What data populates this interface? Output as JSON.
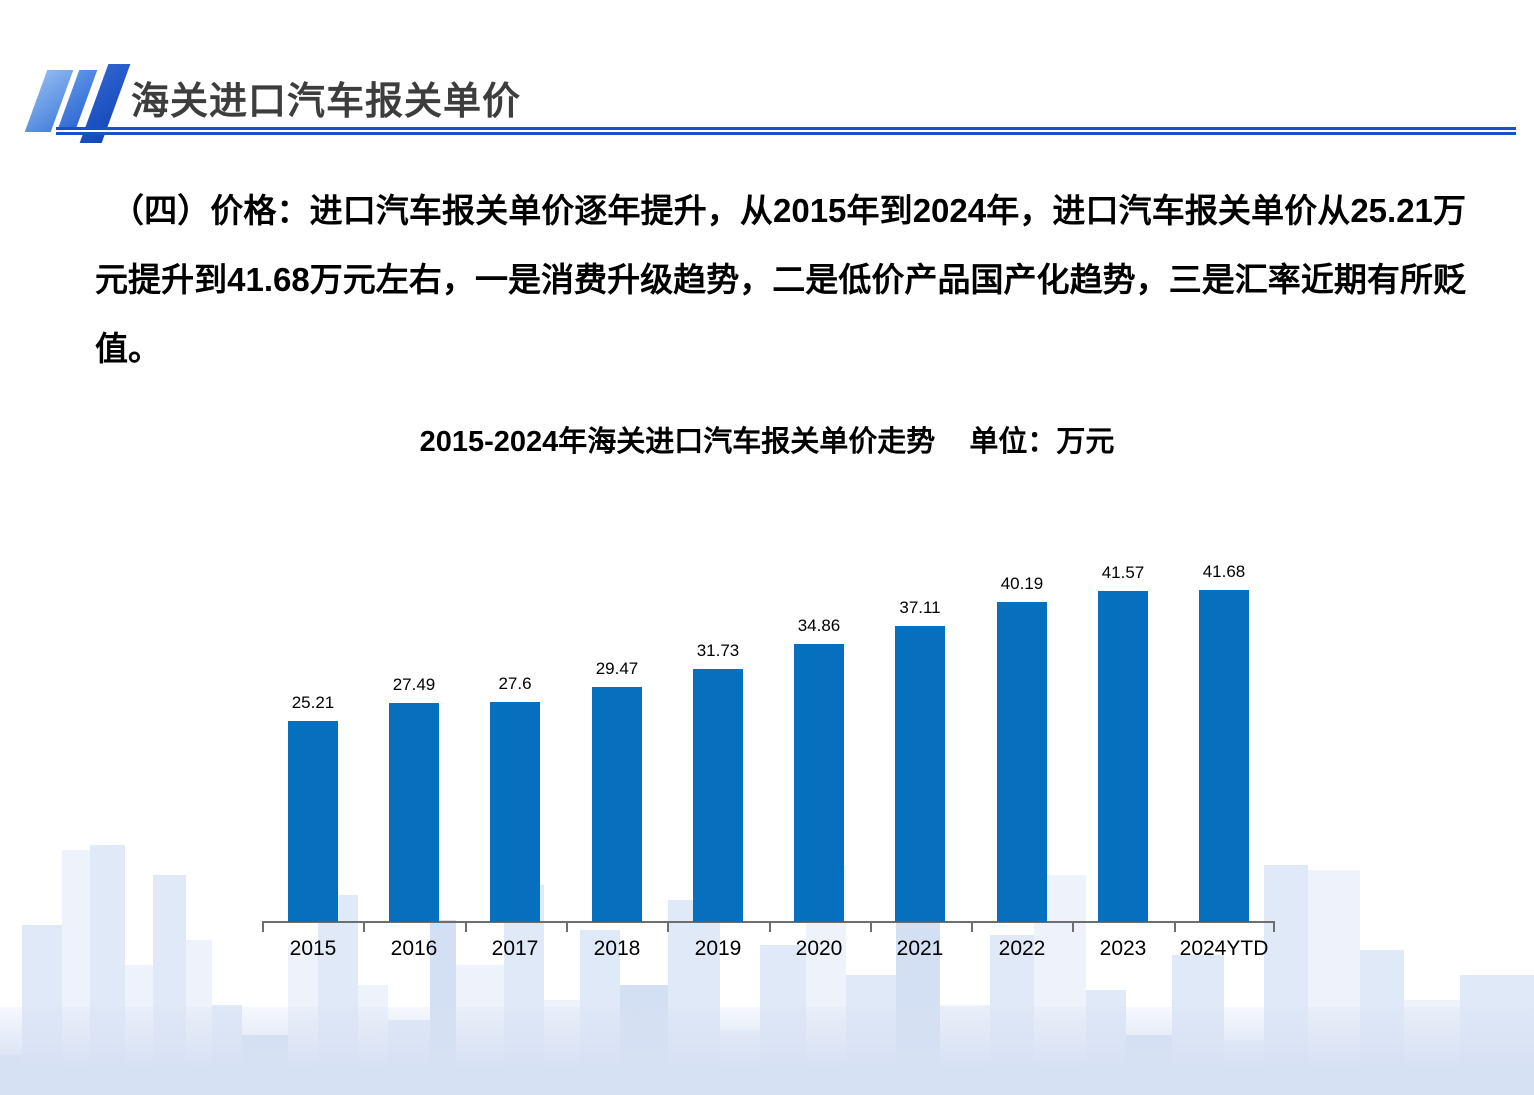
{
  "header": {
    "title": "海关进口汽车报关单价"
  },
  "intro": {
    "text": "（四）价格：进口汽车报关单价逐年提升，从2015年到2024年，进口汽车报关单价从25.21万元提升到41.68万元左右，一是消费升级趋势，二是低价产品国产化趋势，三是汇率近期有所贬值。"
  },
  "chart_data": {
    "type": "bar",
    "title": "2015-2024年海关进口汽车报关单价走势",
    "unit_label": "单位：万元",
    "categories": [
      "2015",
      "2016",
      "2017",
      "2018",
      "2019",
      "2020",
      "2021",
      "2022",
      "2023",
      "2024YTD"
    ],
    "values": [
      25.21,
      27.49,
      27.6,
      29.47,
      31.73,
      34.86,
      37.11,
      40.19,
      41.57,
      41.68
    ],
    "ylabel": "万元",
    "ylim": [
      0,
      45
    ],
    "grid": false,
    "legend": "none",
    "data_labels": true,
    "bar_color": "#0770BE"
  },
  "colors": {
    "accent_blue": "#1553C6",
    "bar_blue": "#0770BE",
    "title_gray": "#3D3D3D",
    "axis_gray": "#6E6E6E"
  }
}
